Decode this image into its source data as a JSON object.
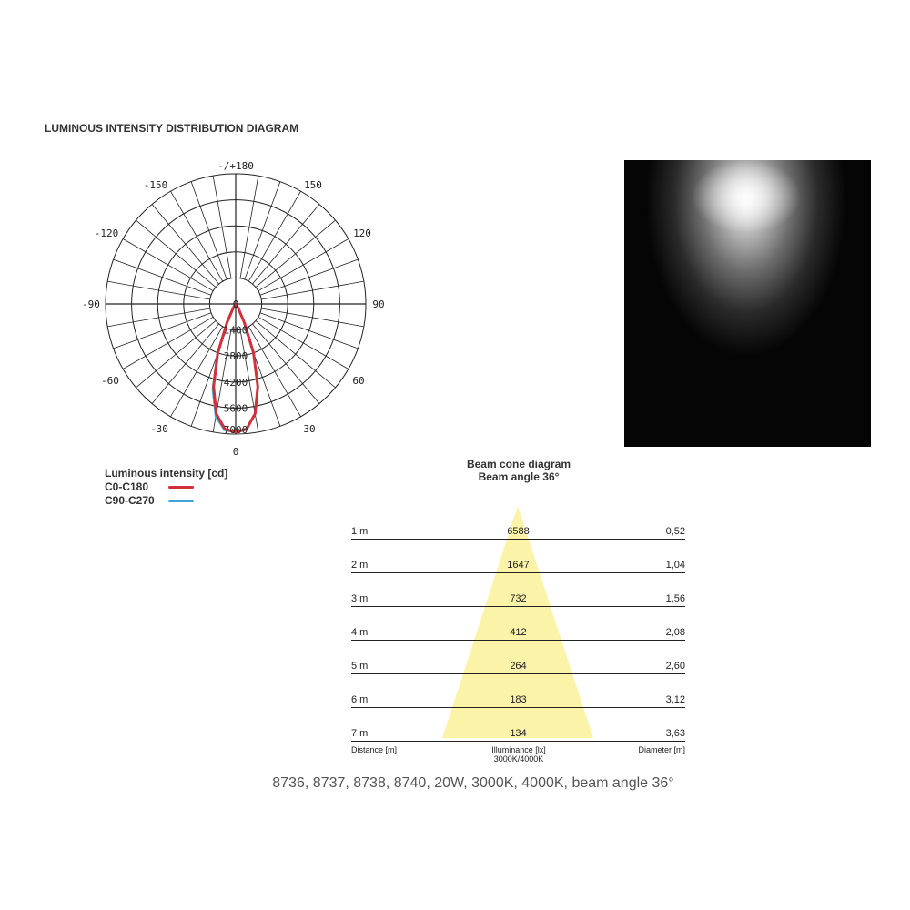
{
  "title": "LUMINOUS INTENSITY DISTRIBUTION DIAGRAM",
  "chart_data": [
    {
      "type": "polar-line",
      "angle_labels": {
        "top": "-/+180",
        "m150": "-150",
        "p150": "150",
        "m120": "-120",
        "p120": "120",
        "m90": "-90",
        "p90": "90",
        "m60": "-60",
        "p60": "60",
        "m30": "-30",
        "p30": "30",
        "bottom": "0"
      },
      "radial_ticks": [
        "0",
        "1400",
        "2800",
        "4200",
        "5600",
        "7000"
      ],
      "rmax": 7000,
      "angles": [
        -40,
        -30,
        -25,
        -20,
        -15,
        -10,
        -5,
        0,
        5,
        10,
        15,
        20,
        25,
        30,
        40
      ],
      "series": [
        {
          "name": "C0-C180",
          "color": "#d0313a",
          "values": [
            0,
            290,
            1100,
            2800,
            4600,
            6000,
            6750,
            6900,
            6750,
            6000,
            4600,
            2800,
            1100,
            290,
            0
          ]
        },
        {
          "name": "C90-C270",
          "color": "#3aa6d8",
          "values": [
            0,
            300,
            1150,
            2900,
            4750,
            6150,
            6800,
            6900,
            6750,
            6000,
            4600,
            2800,
            1100,
            290,
            0
          ]
        }
      ],
      "legend_title": "Luminous intensity [cd]"
    },
    {
      "type": "table",
      "title": "Beam cone diagram",
      "subtitle": "Beam angle 36°",
      "rows": [
        {
          "distance": "1 m",
          "lux": "6588",
          "diameter": "0,52"
        },
        {
          "distance": "2 m",
          "lux": "1647",
          "diameter": "1,04"
        },
        {
          "distance": "3 m",
          "lux": "732",
          "diameter": "1,56"
        },
        {
          "distance": "4 m",
          "lux": "412",
          "diameter": "2,08"
        },
        {
          "distance": "5 m",
          "lux": "264",
          "diameter": "2,60"
        },
        {
          "distance": "6 m",
          "lux": "183",
          "diameter": "3,12"
        },
        {
          "distance": "7 m",
          "lux": "134",
          "diameter": "3,63"
        }
      ],
      "col_distance": "Distance [m]",
      "col_lux": "Illuminance [lx]",
      "col_lux_sub": "3000K/4000K",
      "col_diameter": "Diameter [m]",
      "cone_color": "#fbf3a8"
    }
  ],
  "caption": "8736, 8737, 8738, 8740, 20W, 3000K, 4000K, beam angle 36°"
}
